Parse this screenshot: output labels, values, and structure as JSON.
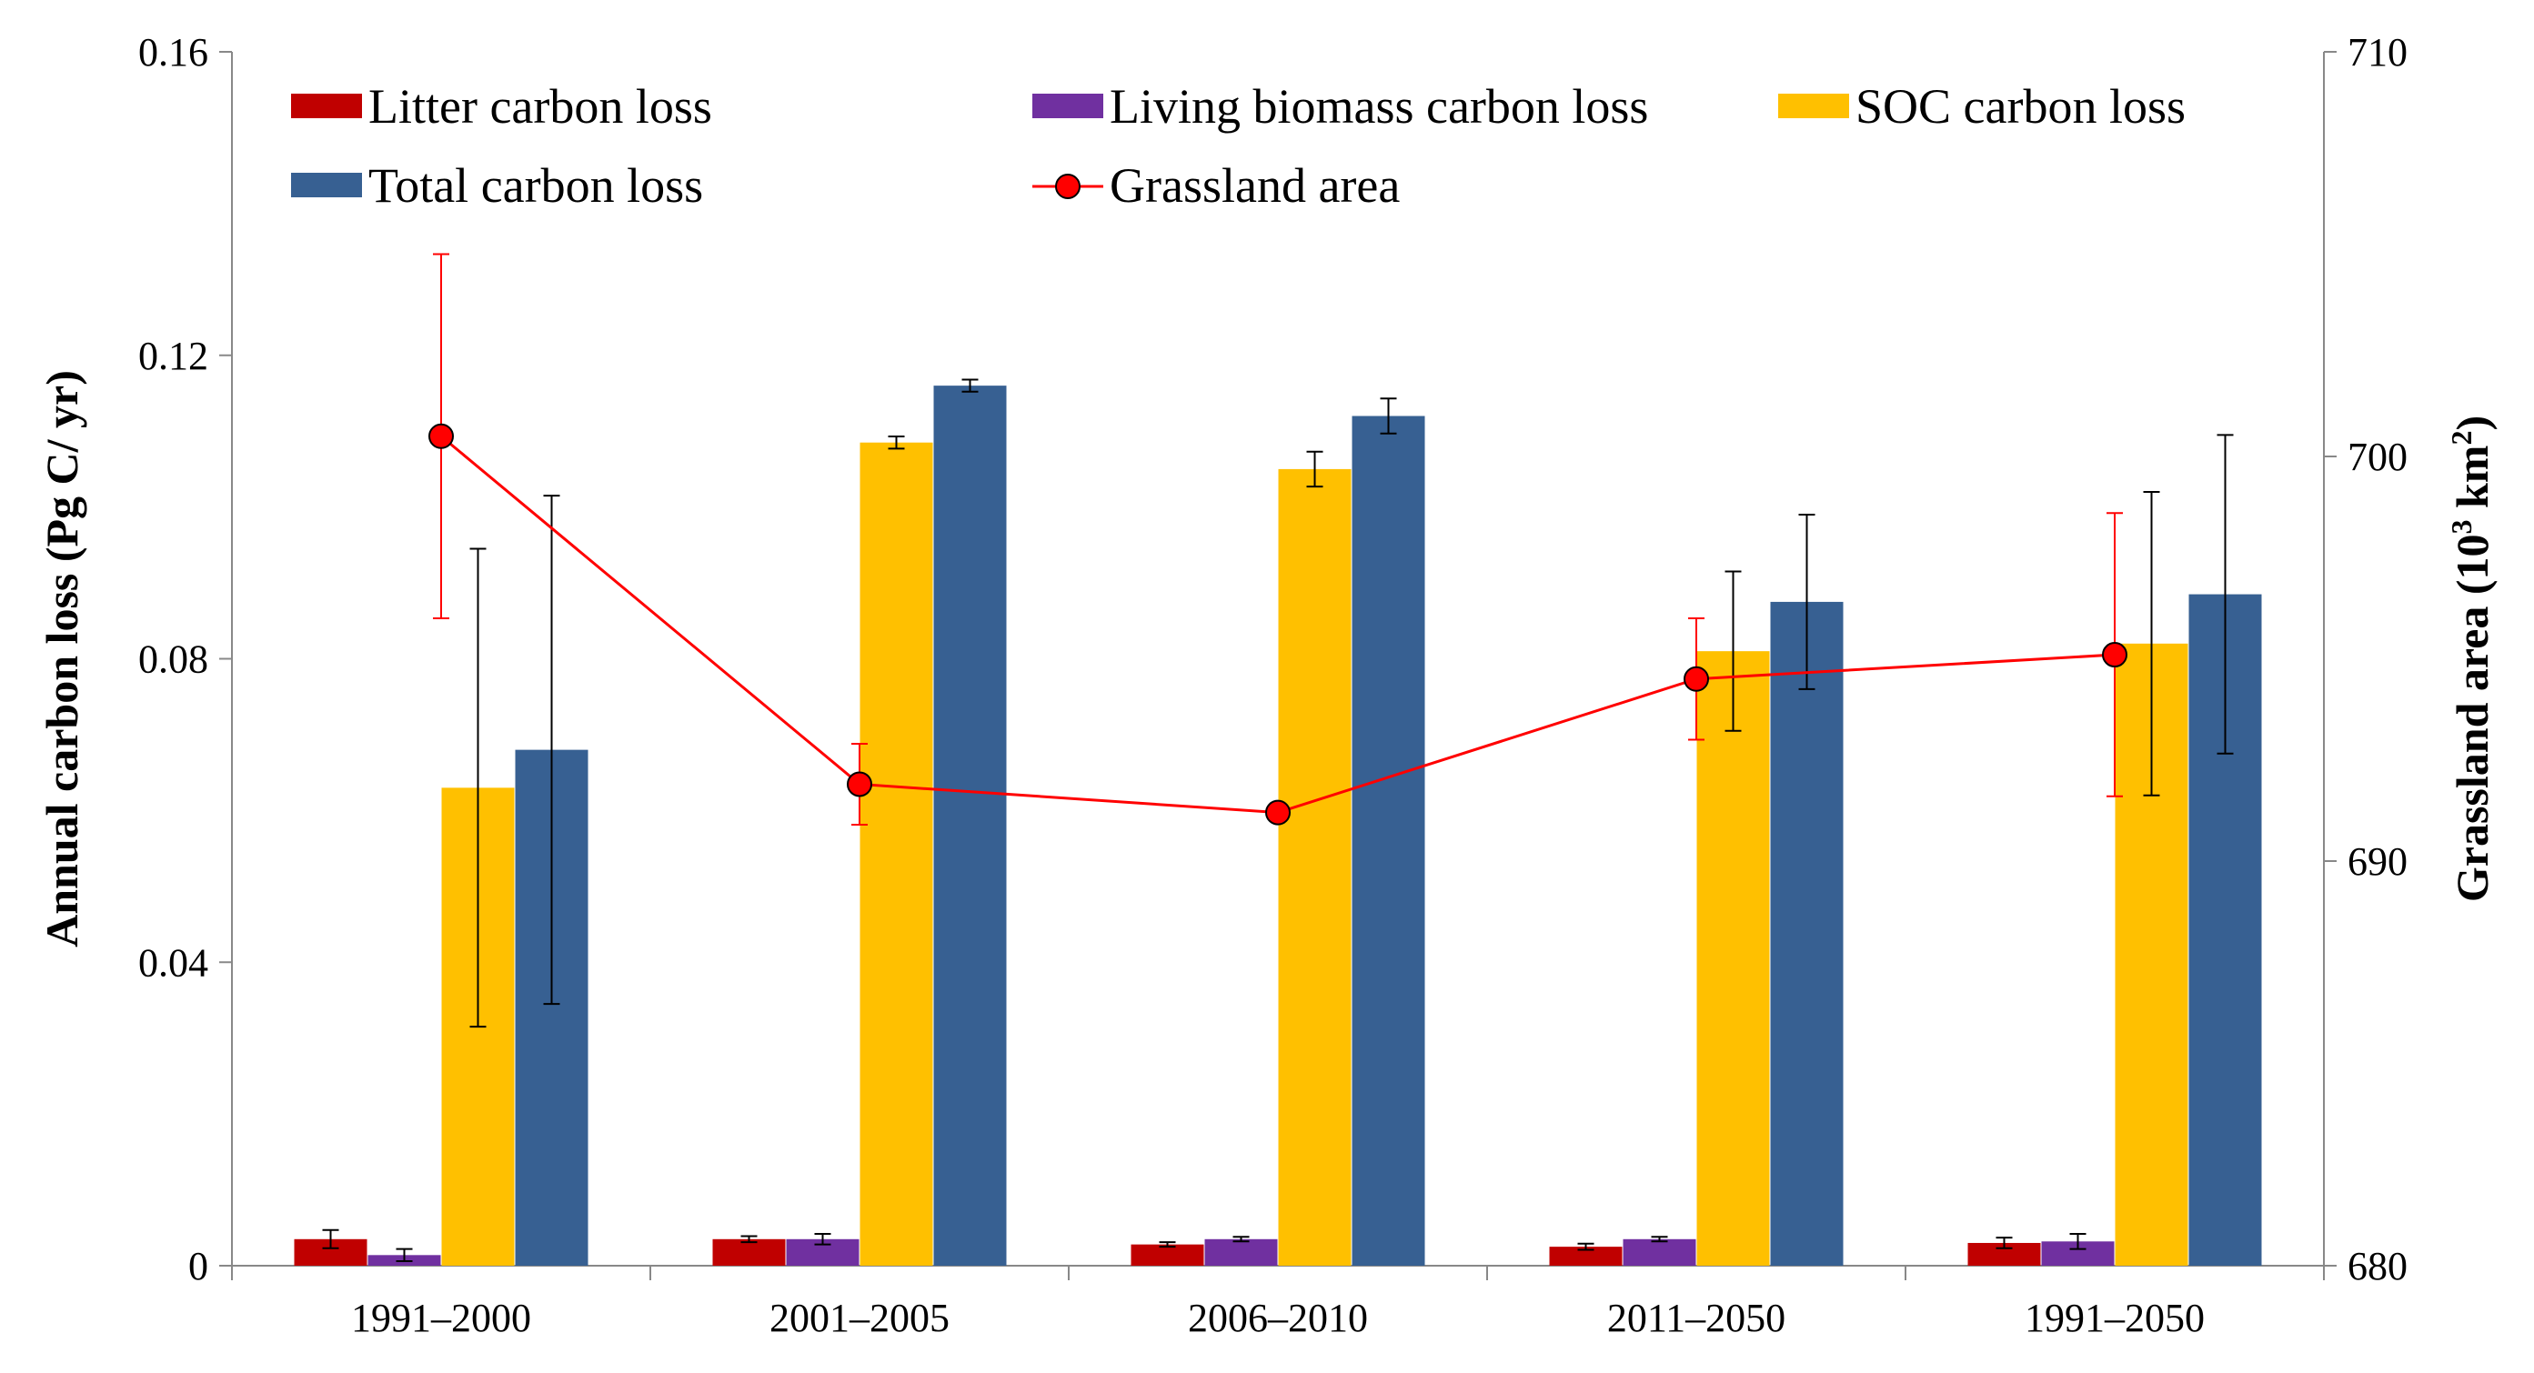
{
  "chart_data": {
    "type": "bar",
    "categories": [
      "1991–2000",
      "2001–2005",
      "2006–2010",
      "2011–2050",
      "1991–2050"
    ],
    "series": [
      {
        "name": "Litter carbon loss",
        "color": "#C00000",
        "values": [
          0.0035,
          0.0035,
          0.0028,
          0.0025,
          0.003
        ],
        "errors": [
          0.0012,
          0.0004,
          0.0003,
          0.0004,
          0.0007
        ]
      },
      {
        "name": "Living biomass carbon loss",
        "color": "#7030A0",
        "values": [
          0.0014,
          0.0035,
          0.0035,
          0.0035,
          0.0032
        ],
        "errors": [
          0.0008,
          0.0007,
          0.0003,
          0.0003,
          0.001
        ]
      },
      {
        "name": "SOC carbon loss",
        "color": "#FFC000",
        "values": [
          0.063,
          0.1085,
          0.105,
          0.081,
          0.082
        ],
        "errors": [
          0.0315,
          0.0008,
          0.0023,
          0.0105,
          0.02
        ]
      },
      {
        "name": "Total carbon loss",
        "color": "#376092",
        "values": [
          0.068,
          0.116,
          0.112,
          0.0875,
          0.0885
        ],
        "errors": [
          0.0335,
          0.0008,
          0.0023,
          0.0115,
          0.021
        ]
      }
    ],
    "line_series": {
      "name": "Grassland area",
      "color": "#FF0000",
      "marker_color": "#FF0000",
      "values": [
        700.5,
        691.9,
        691.2,
        694.5,
        695.1
      ],
      "errors": [
        4.5,
        1.0,
        0.0,
        1.5,
        3.5
      ],
      "axis": "right"
    },
    "ylabel": "Annual  carbon loss (Pg C/ yr)",
    "y2label_main": "Grassland  area (10",
    "y2label_sup": "3",
    "y2label_unit": " km",
    "y2label_sup2": "2",
    "y2label_end": ")",
    "ylim": [
      0,
      0.16
    ],
    "yticks": [
      "0",
      "0.04",
      "0.08",
      "0.12",
      "0.16"
    ],
    "ytick_values": [
      0,
      0.04,
      0.08,
      0.12,
      0.16
    ],
    "y2lim": [
      680,
      710
    ],
    "y2ticks": [
      "680",
      "690",
      "700",
      "710"
    ],
    "y2tick_values": [
      680,
      690,
      700,
      710
    ],
    "legend_position": "top",
    "grid": false
  }
}
